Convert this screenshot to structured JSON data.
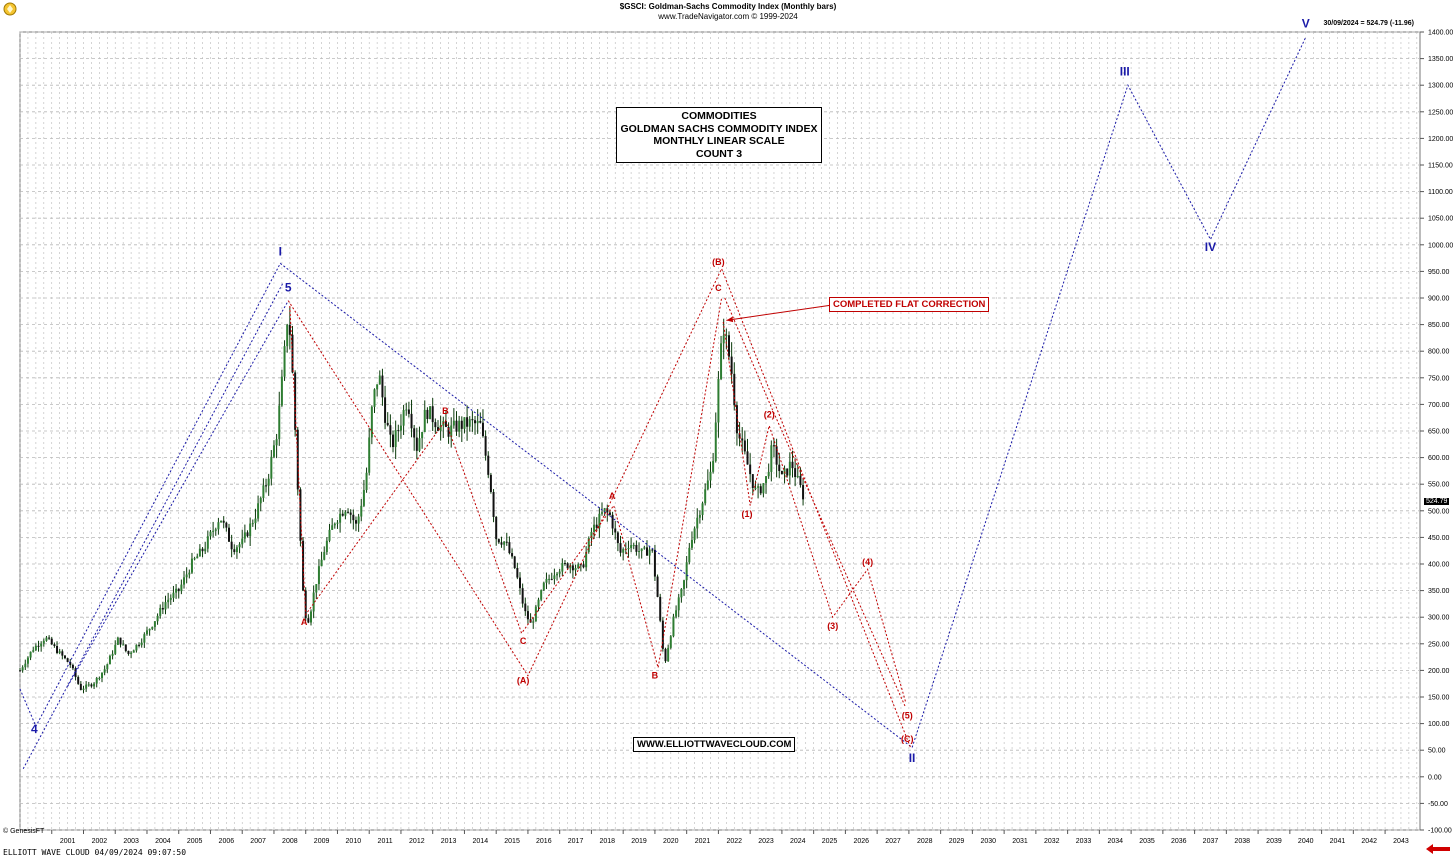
{
  "header": {
    "title": "$GSCI: Goldman-Sachs Commodity Index (Monthly bars)",
    "subtitle": "www.TradeNavigator.com © 1999-2024"
  },
  "last_label": "30/09/2024 = 524.79 (-11.96)",
  "last_value": "524.79",
  "title_box": [
    "COMMODITIES",
    "GOLDMAN SACHS COMMODITY INDEX",
    "MONTHLY LINEAR SCALE",
    "COUNT 3"
  ],
  "note": "COMPLETED FLAT CORRECTION",
  "website": "WWW.ELLIOTTWAVECLOUD.COM",
  "footer": "ELLIOTT WAVE CLOUD  04/09/2024 09:07:50",
  "copyright": "© GenesisFT",
  "colors": {
    "blue": "#1a1aa8",
    "red": "#c00000",
    "candle": "#0a3a0a",
    "grid": "#b8b8b8"
  },
  "chart_data": {
    "type": "candlestick",
    "ylim": [
      -100,
      1400
    ],
    "y_ticks": [
      -100,
      -50,
      0,
      50,
      100,
      150,
      200,
      250,
      300,
      350,
      400,
      450,
      500,
      550,
      600,
      650,
      700,
      750,
      800,
      850,
      900,
      950,
      1000,
      1050,
      1100,
      1150,
      1200,
      1250,
      1300,
      1350,
      1400
    ],
    "y_tick_labels": [
      "-100.00",
      "-50.00",
      "0.00",
      "50.00",
      "100.00",
      "150.00",
      "200.00",
      "250.00",
      "300.00",
      "350.00",
      "400.00",
      "450.00",
      "500.00",
      "550.00",
      "600.00",
      "650.00",
      "700.00",
      "750.00",
      "800.00",
      "850.00",
      "900.00",
      "950.00",
      "1000.00",
      "1050.00",
      "1100.00",
      "1150.00",
      "1200.00",
      "1250.00",
      "1300.00",
      "1350.00",
      "1400.00"
    ],
    "xlim": [
      2000.0,
      2044.1
    ],
    "x_ticks": [
      "2001",
      "2002",
      "2003",
      "2004",
      "2005",
      "2006",
      "2007",
      "2008",
      "2009",
      "2010",
      "2011",
      "2012",
      "2013",
      "2014",
      "2015",
      "2016",
      "2017",
      "2018",
      "2019",
      "2020",
      "2021",
      "2022",
      "2023",
      "2024",
      "2025",
      "2026",
      "2027",
      "2028",
      "2029",
      "2030",
      "2031",
      "2032",
      "2033",
      "2034",
      "2035",
      "2036",
      "2037",
      "2038",
      "2039",
      "2040",
      "2041",
      "2042",
      "2043"
    ],
    "price_path": [
      [
        2000.0,
        200
      ],
      [
        2000.4,
        240
      ],
      [
        2000.8,
        262
      ],
      [
        2001.2,
        235
      ],
      [
        2001.6,
        210
      ],
      [
        2001.9,
        165
      ],
      [
        2002.3,
        175
      ],
      [
        2002.7,
        205
      ],
      [
        2003.1,
        260
      ],
      [
        2003.4,
        230
      ],
      [
        2003.8,
        255
      ],
      [
        2004.2,
        290
      ],
      [
        2004.6,
        330
      ],
      [
        2005.0,
        350
      ],
      [
        2005.4,
        400
      ],
      [
        2005.8,
        430
      ],
      [
        2006.3,
        490
      ],
      [
        2006.7,
        430
      ],
      [
        2007.0,
        440
      ],
      [
        2007.4,
        490
      ],
      [
        2007.8,
        560
      ],
      [
        2008.1,
        650
      ],
      [
        2008.3,
        770
      ],
      [
        2008.45,
        885
      ],
      [
        2008.6,
        740
      ],
      [
        2008.8,
        480
      ],
      [
        2008.95,
        310
      ],
      [
        2009.1,
        295
      ],
      [
        2009.3,
        360
      ],
      [
        2009.6,
        430
      ],
      [
        2009.9,
        480
      ],
      [
        2010.3,
        510
      ],
      [
        2010.6,
        470
      ],
      [
        2010.9,
        560
      ],
      [
        2011.1,
        700
      ],
      [
        2011.3,
        760
      ],
      [
        2011.5,
        680
      ],
      [
        2011.7,
        620
      ],
      [
        2011.9,
        650
      ],
      [
        2012.2,
        710
      ],
      [
        2012.5,
        620
      ],
      [
        2012.8,
        690
      ],
      [
        2013.2,
        660
      ],
      [
        2013.5,
        650
      ],
      [
        2013.8,
        660
      ],
      [
        2014.2,
        665
      ],
      [
        2014.5,
        660
      ],
      [
        2014.8,
        560
      ],
      [
        2015.0,
        450
      ],
      [
        2015.3,
        440
      ],
      [
        2015.6,
        390
      ],
      [
        2015.9,
        310
      ],
      [
        2016.1,
        285
      ],
      [
        2016.5,
        360
      ],
      [
        2016.9,
        390
      ],
      [
        2017.3,
        400
      ],
      [
        2017.7,
        390
      ],
      [
        2018.0,
        460
      ],
      [
        2018.4,
        500
      ],
      [
        2018.6,
        490
      ],
      [
        2018.9,
        420
      ],
      [
        2019.2,
        440
      ],
      [
        2019.6,
        420
      ],
      [
        2019.9,
        430
      ],
      [
        2020.1,
        330
      ],
      [
        2020.3,
        210
      ],
      [
        2020.6,
        300
      ],
      [
        2020.9,
        360
      ],
      [
        2021.1,
        440
      ],
      [
        2021.5,
        520
      ],
      [
        2021.8,
        580
      ],
      [
        2022.0,
        740
      ],
      [
        2022.15,
        850
      ],
      [
        2022.4,
        770
      ],
      [
        2022.6,
        650
      ],
      [
        2022.9,
        590
      ],
      [
        2023.2,
        530
      ],
      [
        2023.5,
        560
      ],
      [
        2023.7,
        620
      ],
      [
        2024.0,
        560
      ],
      [
        2024.3,
        590
      ],
      [
        2024.5,
        555
      ],
      [
        2024.7,
        525
      ]
    ],
    "series": [
      {
        "name": "blue_wave_channel",
        "color": "#1a1aa8",
        "points": [
          [
            2000.0,
            165
          ],
          [
            2000.5,
            95
          ],
          [
            2008.2,
            965
          ],
          [
            2028.1,
            55
          ],
          [
            2034.9,
            1300
          ],
          [
            2037.5,
            1010
          ],
          [
            2040.5,
            1390
          ]
        ]
      },
      {
        "name": "blue_channel_lower",
        "color": "#1a1aa8",
        "points": [
          [
            2000.1,
            15
          ],
          [
            2008.3,
            930
          ]
        ]
      },
      {
        "name": "blue_channel_upper",
        "color": "#1a1aa8",
        "points": [
          [
            2001.5,
            170
          ],
          [
            2008.45,
            895
          ]
        ]
      },
      {
        "name": "red_abc_correction",
        "color": "#c00000",
        "points": [
          [
            2008.45,
            895
          ],
          [
            2016.0,
            190
          ],
          [
            2022.1,
            955
          ],
          [
            2028.05,
            55
          ]
        ]
      },
      {
        "name": "red_sub_wave",
        "color": "#c00000",
        "points": [
          [
            2008.5,
            885
          ],
          [
            2009.0,
            305
          ],
          [
            2013.4,
            670
          ],
          [
            2015.8,
            270
          ],
          [
            2018.7,
            510
          ],
          [
            2020.1,
            205
          ],
          [
            2022.1,
            900
          ]
        ]
      },
      {
        "name": "red_impulse_projection",
        "color": "#c00000",
        "points": [
          [
            2022.15,
            855
          ],
          [
            2023.0,
            510
          ],
          [
            2023.6,
            660
          ],
          [
            2025.6,
            300
          ],
          [
            2026.7,
            390
          ],
          [
            2027.9,
            140
          ]
        ]
      },
      {
        "name": "red_impulse_outline",
        "color": "#c00000",
        "points": [
          [
            2022.2,
            900
          ],
          [
            2023.7,
            690
          ],
          [
            2027.9,
            130
          ]
        ]
      }
    ],
    "annotations": [
      {
        "text": "I",
        "x": 2008.2,
        "y": 980,
        "color": "#1a1aa8"
      },
      {
        "text": "5",
        "x": 2008.45,
        "y": 912,
        "color": "#1a1aa8"
      },
      {
        "text": "4",
        "x": 2000.45,
        "y": 82,
        "color": "#1a1aa8"
      },
      {
        "text": "II",
        "x": 2028.1,
        "y": 28,
        "color": "#1a1aa8"
      },
      {
        "text": "III",
        "x": 2034.8,
        "y": 1318,
        "color": "#1a1aa8"
      },
      {
        "text": "IV",
        "x": 2037.5,
        "y": 988,
        "color": "#1a1aa8"
      },
      {
        "text": "V",
        "x": 2040.5,
        "y": 1408,
        "color": "#1a1aa8"
      },
      {
        "text": "A",
        "x": 2008.95,
        "y": 285,
        "color": "#c00000"
      },
      {
        "text": "B",
        "x": 2013.4,
        "y": 682,
        "color": "#c00000"
      },
      {
        "text": "C",
        "x": 2015.85,
        "y": 250,
        "color": "#c00000"
      },
      {
        "text": "(A)",
        "x": 2015.85,
        "y": 175,
        "color": "#c00000"
      },
      {
        "text": "A",
        "x": 2018.65,
        "y": 522,
        "color": "#c00000"
      },
      {
        "text": "B",
        "x": 2020.0,
        "y": 185,
        "color": "#c00000"
      },
      {
        "text": "(B)",
        "x": 2022.0,
        "y": 962,
        "color": "#c00000"
      },
      {
        "text": "C",
        "x": 2022.0,
        "y": 913,
        "color": "#c00000"
      },
      {
        "text": "(1)",
        "x": 2022.9,
        "y": 488,
        "color": "#c00000"
      },
      {
        "text": "(2)",
        "x": 2023.6,
        "y": 675,
        "color": "#c00000"
      },
      {
        "text": "(3)",
        "x": 2025.6,
        "y": 278,
        "color": "#c00000"
      },
      {
        "text": "(4)",
        "x": 2026.7,
        "y": 398,
        "color": "#c00000"
      },
      {
        "text": "(5)",
        "x": 2027.95,
        "y": 110,
        "color": "#c00000"
      },
      {
        "text": "(C)",
        "x": 2027.95,
        "y": 65,
        "color": "#c00000"
      }
    ],
    "arrow": {
      "from": [
        2026.3,
        893
      ],
      "to": [
        2022.25,
        858
      ],
      "color": "#c00000"
    }
  }
}
